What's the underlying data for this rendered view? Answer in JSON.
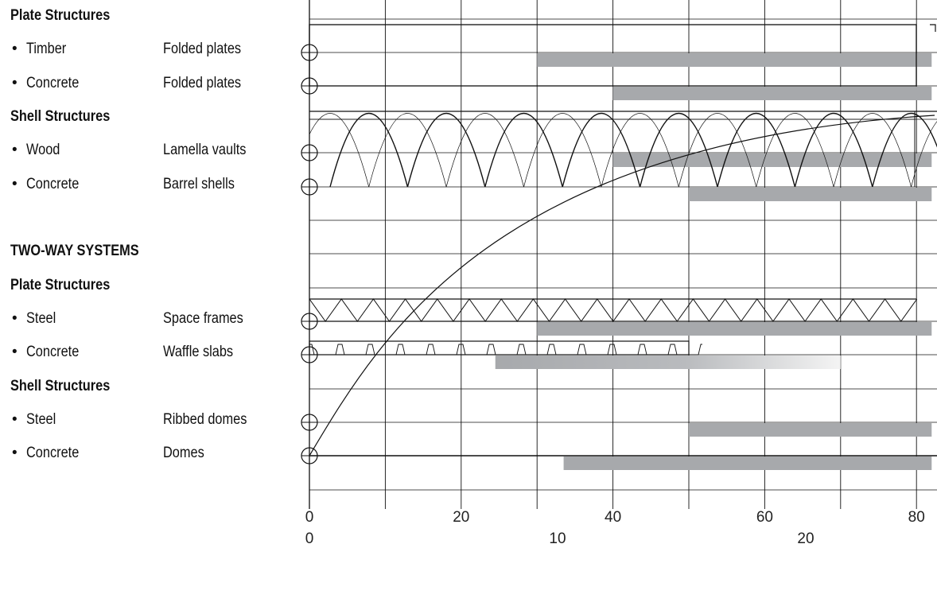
{
  "labels": {
    "plate_structures_1": "Plate Structures",
    "shell_structures_1": "Shell Structures",
    "two_way_systems": "TWO-WAY SYSTEMS",
    "plate_structures_2": "Plate Structures",
    "shell_structures_2": "Shell Structures"
  },
  "rows": [
    {
      "material": "Timber",
      "system": "Folded plates"
    },
    {
      "material": "Concrete",
      "system": "Folded plates"
    },
    {
      "material": "Wood",
      "system": "Lamella vaults"
    },
    {
      "material": "Concrete",
      "system": "Barrel shells"
    },
    {
      "material": "Steel",
      "system": "Space frames"
    },
    {
      "material": "Concrete",
      "system": "Waffle slabs"
    },
    {
      "material": "Steel",
      "system": "Ribbed domes"
    },
    {
      "material": "Concrete",
      "system": "Domes"
    }
  ],
  "chart_data": {
    "type": "bar",
    "orientation": "horizontal",
    "categories": [
      "Timber Folded plates",
      "Concrete Folded plates",
      "Wood Lamella vaults",
      "Concrete Barrel shells",
      "Steel Space frames",
      "Concrete Waffle slabs",
      "Steel Ribbed domes",
      "Concrete Domes"
    ],
    "bar_ranges": [
      [
        30,
        82
      ],
      [
        40,
        82
      ],
      [
        40,
        82
      ],
      [
        50,
        82
      ],
      [
        30,
        82
      ],
      [
        24.5,
        70
      ],
      [
        50,
        82
      ],
      [
        33.5,
        82
      ]
    ],
    "xlim": [
      0,
      82
    ],
    "x_ticks_top": [
      0,
      20,
      40,
      60,
      80
    ],
    "x_ticks_bottom": [
      0,
      10,
      20
    ],
    "bar_color": "#a7a9ac",
    "grid": true
  }
}
